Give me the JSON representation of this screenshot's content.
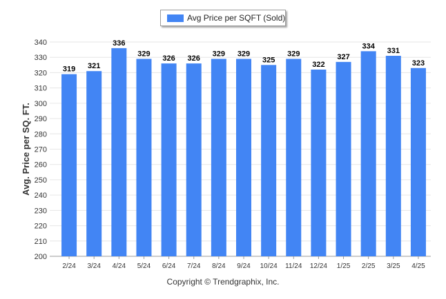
{
  "legend": {
    "label": "Avg Price per SQFT (Sold)"
  },
  "colors": {
    "bar": "#4285f4",
    "grid": "#e6e6e6",
    "axis": "#999999"
  },
  "footer": {
    "copyright": "Copyright © Trendgraphix, Inc."
  },
  "chart_data": {
    "type": "bar",
    "categories": [
      "2/24",
      "3/24",
      "4/24",
      "5/24",
      "6/24",
      "7/24",
      "8/24",
      "9/24",
      "10/24",
      "11/24",
      "12/24",
      "1/25",
      "2/25",
      "3/25",
      "4/25"
    ],
    "series": [
      {
        "name": "Avg Price per SQFT (Sold)",
        "values": [
          319,
          321,
          336,
          329,
          326,
          326,
          329,
          329,
          325,
          329,
          322,
          327,
          334,
          331,
          323
        ]
      }
    ],
    "ylabel": "Avg. Price per SQ. FT.",
    "xlabel": "",
    "ylim": [
      200,
      340
    ],
    "yticks": [
      200,
      210,
      220,
      230,
      240,
      250,
      260,
      270,
      280,
      290,
      300,
      310,
      320,
      330,
      340
    ],
    "grid": true,
    "legend_position": "top"
  }
}
